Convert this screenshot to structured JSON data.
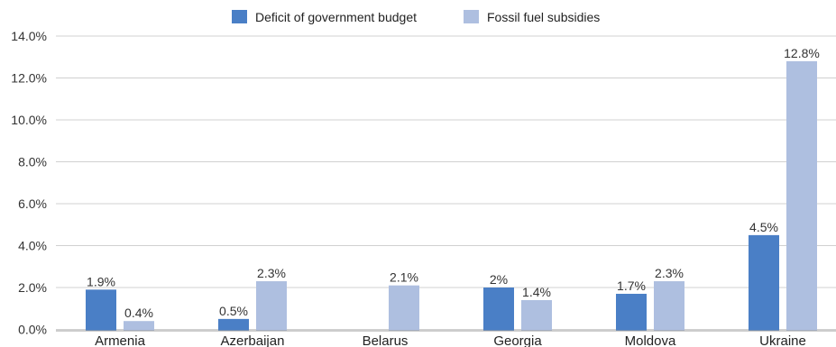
{
  "chart_data": {
    "type": "bar",
    "title": "",
    "xlabel": "",
    "ylabel": "",
    "categories": [
      "Armenia",
      "Azerbaijan",
      "Belarus",
      "Georgia",
      "Moldova",
      "Ukraine"
    ],
    "series": [
      {
        "name": "Deficit of government budget",
        "color": "#4a7fc6",
        "values": [
          1.9,
          0.5,
          null,
          2.0,
          1.7,
          4.5
        ],
        "labels": [
          "1.9%",
          "0.5%",
          "",
          "2%",
          "1.7%",
          "4.5%"
        ]
      },
      {
        "name": "Fossil fuel subsidies",
        "color": "#aebfe0",
        "values": [
          0.4,
          2.3,
          2.1,
          1.4,
          2.3,
          12.8
        ],
        "labels": [
          "0.4%",
          "2.3%",
          "2.1%",
          "1.4%",
          "2.3%",
          "12.8%"
        ]
      }
    ],
    "y_ticks": [
      {
        "label": "14.0%",
        "value": 14
      },
      {
        "label": "12.0%",
        "value": 12
      },
      {
        "label": "10.0%",
        "value": 10
      },
      {
        "label": "8.0%",
        "value": 8
      },
      {
        "label": "6.0%",
        "value": 6
      },
      {
        "label": "4.0%",
        "value": 4
      },
      {
        "label": "2.0%",
        "value": 2
      },
      {
        "label": "0.0%",
        "value": 0
      }
    ],
    "ylim": [
      0,
      14
    ],
    "grid": true,
    "legend_position": "top-center"
  }
}
